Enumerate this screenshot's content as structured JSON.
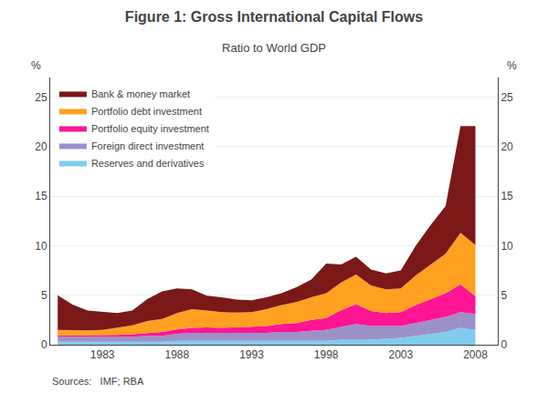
{
  "chart_data": {
    "type": "area",
    "title": "Figure 1: Gross International Capital Flows",
    "subtitle": "Ratio to World GDP",
    "y_label": "%",
    "y2_label": "%",
    "source": "Sources:   IMF; RBA",
    "stacked": true,
    "x": [
      1980,
      1981,
      1982,
      1983,
      1984,
      1985,
      1986,
      1987,
      1988,
      1989,
      1990,
      1991,
      1992,
      1993,
      1994,
      1995,
      1996,
      1997,
      1998,
      1999,
      2000,
      2001,
      2002,
      2003,
      2004,
      2005,
      2006,
      2007,
      2008
    ],
    "series": [
      {
        "name": "Reserves and derivatives",
        "color": "#80CCEE",
        "values": [
          0.3,
          0.3,
          0.3,
          0.3,
          0.3,
          0.3,
          0.3,
          0.3,
          0.4,
          0.4,
          0.4,
          0.4,
          0.4,
          0.4,
          0.4,
          0.4,
          0.4,
          0.4,
          0.4,
          0.5,
          0.5,
          0.5,
          0.6,
          0.7,
          0.9,
          1.1,
          1.3,
          1.7,
          1.5
        ]
      },
      {
        "name": "Foreign direct investment",
        "color": "#9B91C8",
        "values": [
          0.5,
          0.5,
          0.5,
          0.5,
          0.5,
          0.5,
          0.6,
          0.6,
          0.7,
          0.8,
          0.8,
          0.8,
          0.8,
          0.8,
          0.8,
          0.9,
          0.9,
          1.0,
          1.1,
          1.3,
          1.6,
          1.4,
          1.3,
          1.2,
          1.3,
          1.4,
          1.5,
          1.6,
          1.6
        ]
      },
      {
        "name": "Portfolio equity investment",
        "color": "#FF1493",
        "values": [
          0.15,
          0.15,
          0.15,
          0.15,
          0.2,
          0.25,
          0.3,
          0.4,
          0.45,
          0.5,
          0.55,
          0.5,
          0.55,
          0.6,
          0.7,
          0.8,
          0.9,
          1.1,
          1.2,
          1.7,
          2.0,
          1.5,
          1.3,
          1.4,
          1.8,
          2.1,
          2.4,
          2.8,
          1.8
        ]
      },
      {
        "name": "Portfolio debt investment",
        "color": "#FFA020",
        "values": [
          0.55,
          0.5,
          0.5,
          0.55,
          0.7,
          0.9,
          1.2,
          1.3,
          1.65,
          1.9,
          1.7,
          1.6,
          1.5,
          1.5,
          1.7,
          1.9,
          2.1,
          2.3,
          2.5,
          2.8,
          3.0,
          2.6,
          2.4,
          2.4,
          3.0,
          3.5,
          4.0,
          5.2,
          5.2
        ]
      },
      {
        "name": "Bank & money market",
        "color": "#7B1818",
        "values": [
          3.5,
          2.6,
          2.0,
          1.8,
          1.5,
          1.5,
          2.2,
          2.8,
          2.5,
          2.0,
          1.5,
          1.5,
          1.3,
          1.2,
          1.2,
          1.2,
          1.5,
          1.8,
          3.0,
          1.8,
          1.8,
          1.6,
          1.6,
          1.8,
          3.0,
          4.0,
          4.8,
          10.8,
          12.0
        ]
      }
    ],
    "xlim": [
      1979.5,
      2009.5
    ],
    "xticks": [
      1983,
      1988,
      1993,
      1998,
      2003,
      2008
    ],
    "ylim": [
      0,
      27
    ],
    "yticks": [
      0,
      5,
      10,
      15,
      20,
      25
    ],
    "y2lim": [
      0,
      27
    ],
    "y2ticks": [
      0,
      5,
      10,
      15,
      20,
      25
    ],
    "grid": "y",
    "legend": "upper left"
  }
}
